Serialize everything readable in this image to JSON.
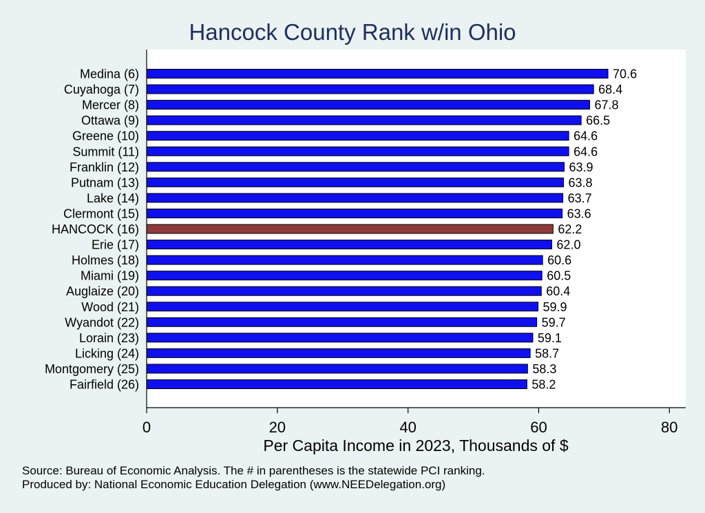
{
  "chart_data": {
    "type": "bar",
    "orientation": "horizontal",
    "title": "Hancock County Rank w/in Ohio",
    "xlabel": "Per Capita Income in 2023, Thousands of $",
    "xlim": [
      0,
      82.5
    ],
    "xticks": [
      0,
      20,
      40,
      60,
      80
    ],
    "grid": false,
    "categories": [
      "Medina  (6)",
      "Cuyahoga  (7)",
      "Mercer  (8)",
      "Ottawa  (9)",
      "Greene (10)",
      "Summit (11)",
      "Franklin (12)",
      "Putnam (13)",
      "Lake (14)",
      "Clermont (15)",
      "HANCOCK (16)",
      "Erie (17)",
      "Holmes (18)",
      "Miami (19)",
      "Auglaize (20)",
      "Wood (21)",
      "Wyandot (22)",
      "Lorain (23)",
      "Licking (24)",
      "Montgomery (25)",
      "Fairfield (26)"
    ],
    "values": [
      70.6,
      68.4,
      67.8,
      66.5,
      64.6,
      64.6,
      63.9,
      63.8,
      63.7,
      63.6,
      62.2,
      62.0,
      60.6,
      60.5,
      60.4,
      59.9,
      59.7,
      59.1,
      58.7,
      58.3,
      58.2
    ],
    "value_labels": [
      "70.6",
      "68.4",
      "67.8",
      "66.5",
      "64.6",
      "64.6",
      "63.9",
      "63.8",
      "63.7",
      "63.6",
      "62.2",
      "62.0",
      "60.6",
      "60.5",
      "60.4",
      "59.9",
      "59.7",
      "59.1",
      "58.7",
      "58.3",
      "58.2"
    ],
    "highlight_index": 10,
    "colors": {
      "bar": "#1010ee",
      "highlight": "#8e3b3b",
      "outline": "#000000",
      "title": "#1e2f5a",
      "background": "#eaf2f3",
      "plot_background": "#ffffff"
    }
  },
  "notes": {
    "source": "Source: Bureau of Economic Analysis. The # in parentheses is the statewide PCI ranking.",
    "produced_by": "Produced by: National Economic Education Delegation (www.NEEDelegation.org)"
  }
}
